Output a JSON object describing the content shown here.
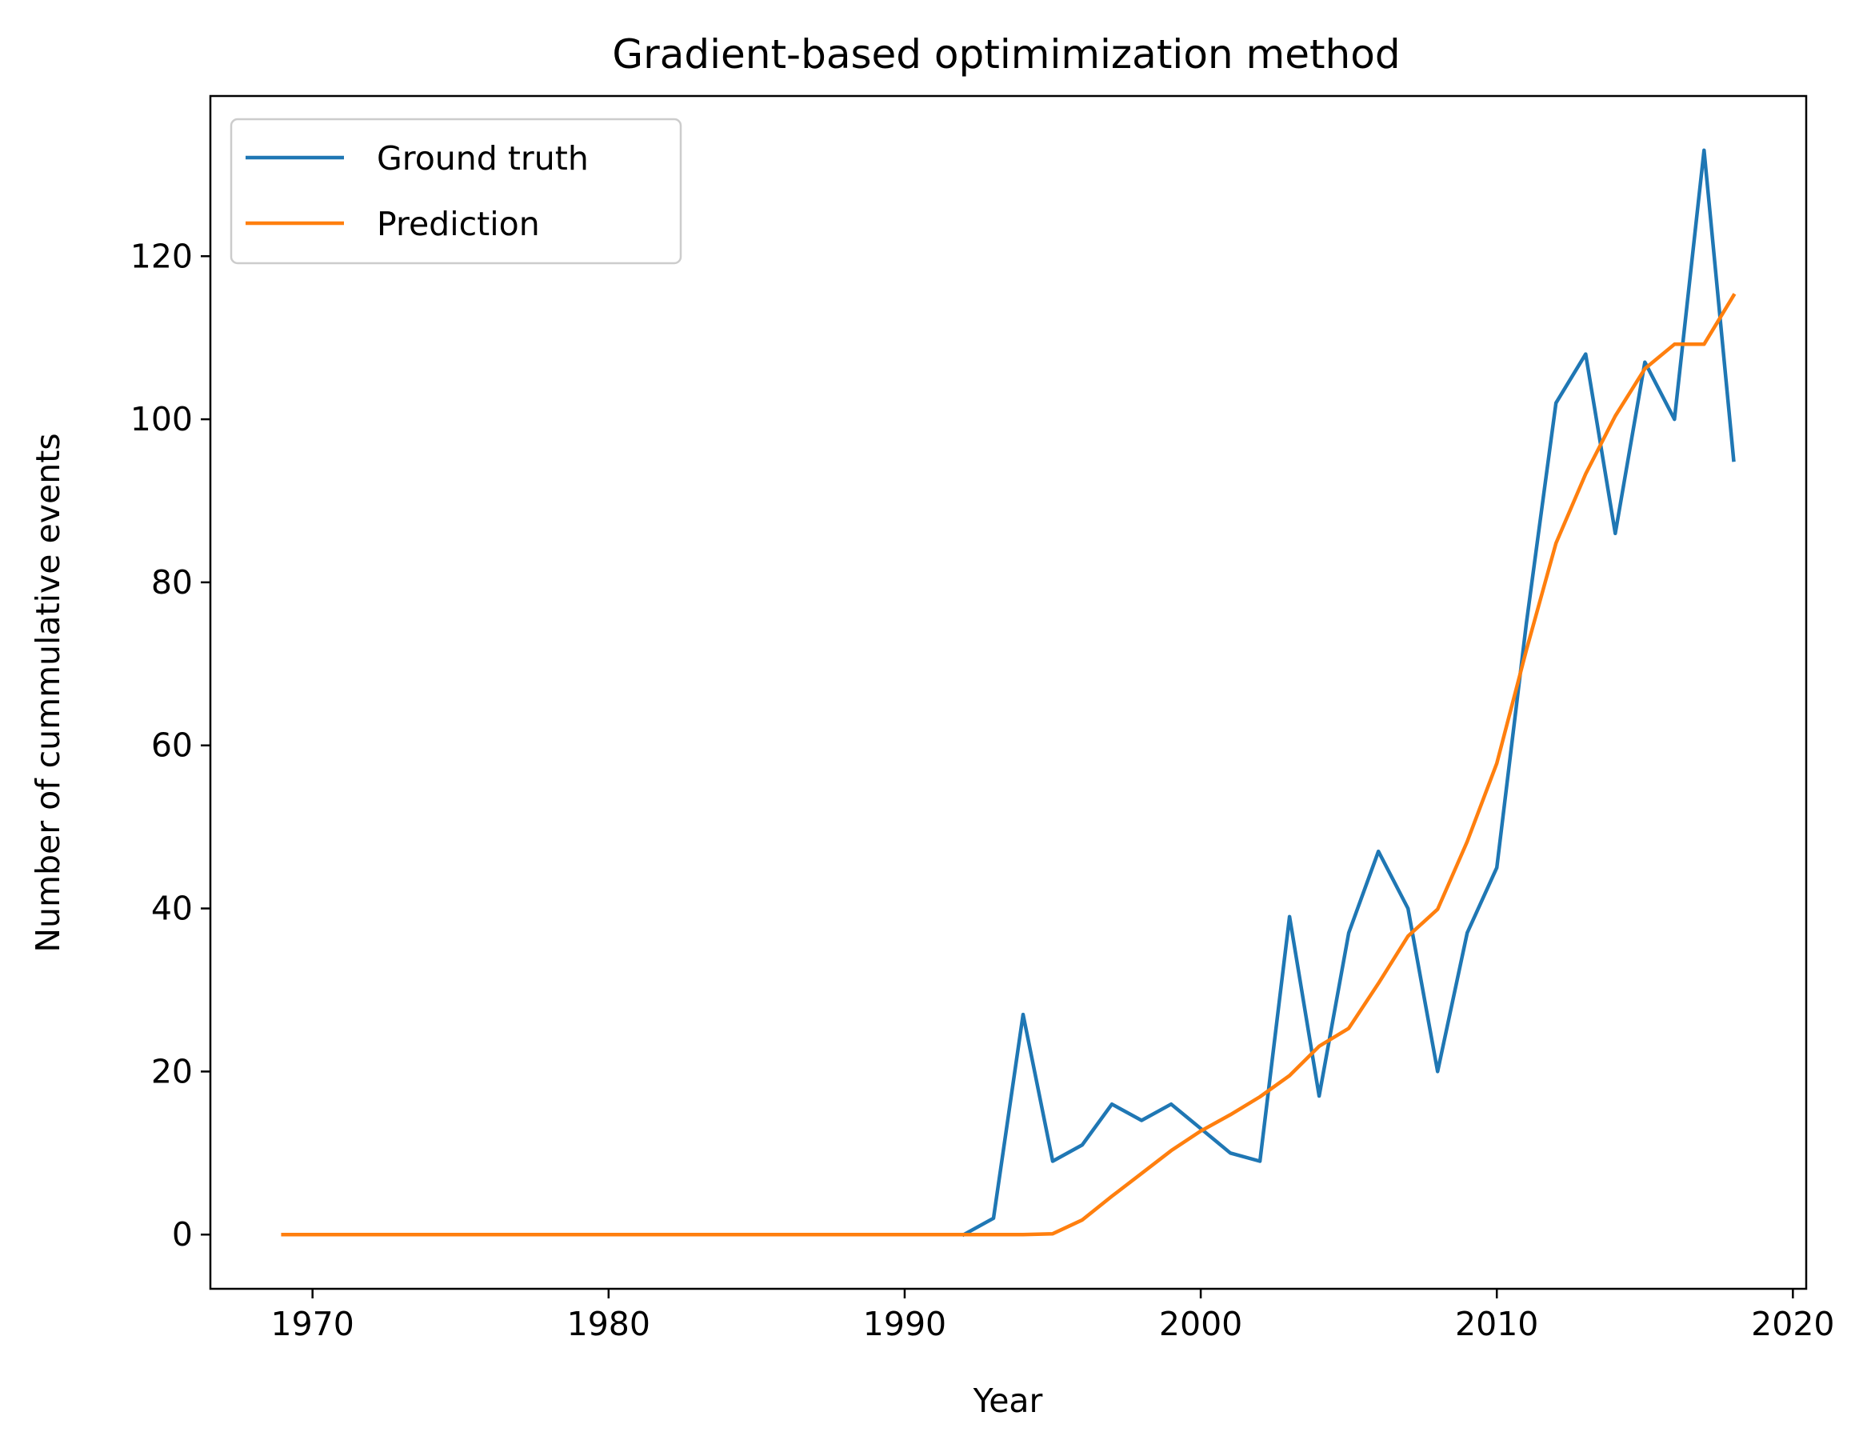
{
  "chart_data": {
    "type": "line",
    "title": "Gradient-based optimimization method",
    "xlabel": "Year",
    "ylabel": "Number of cummulative events",
    "xlim": [
      1966.55,
      2020.45
    ],
    "ylim": [
      -6.65,
      139.65
    ],
    "xticks": [
      1970,
      1980,
      1990,
      2000,
      2010,
      2020
    ],
    "yticks": [
      0,
      20,
      40,
      60,
      80,
      100,
      120
    ],
    "grid": false,
    "legend_position": "upper left",
    "series": [
      {
        "name": "Ground truth",
        "color": "#1f77b4",
        "x": [
          1992,
          1993,
          1994,
          1995,
          1996,
          1997,
          1998,
          1999,
          2000,
          2001,
          2002,
          2003,
          2004,
          2005,
          2006,
          2007,
          2008,
          2009,
          2010,
          2011,
          2012,
          2013,
          2014,
          2015,
          2016,
          2017,
          2018
        ],
        "y": [
          0,
          2,
          27,
          9,
          11,
          16,
          14,
          16,
          13,
          10,
          9,
          39,
          17,
          37,
          47,
          40,
          20,
          37,
          45,
          75,
          102,
          108,
          86,
          107,
          100,
          133,
          95
        ]
      },
      {
        "name": "Prediction",
        "color": "#ff7f0e",
        "x": [
          1969,
          1970,
          1971,
          1972,
          1973,
          1974,
          1975,
          1976,
          1977,
          1978,
          1979,
          1980,
          1981,
          1982,
          1983,
          1984,
          1985,
          1986,
          1987,
          1988,
          1989,
          1990,
          1991,
          1992,
          1993,
          1994,
          1995,
          1996,
          1997,
          1998,
          1999,
          2000,
          2001,
          2002,
          2003,
          2004,
          2005,
          2006,
          2007,
          2008,
          2009,
          2010,
          2011,
          2012,
          2013,
          2014,
          2015,
          2016,
          2017,
          2018
        ],
        "y": [
          0,
          0,
          0,
          0,
          0,
          0,
          0,
          0,
          0,
          0,
          0,
          0,
          0,
          0,
          0,
          0,
          0,
          0,
          0,
          0,
          0,
          0,
          0,
          0,
          0,
          0,
          0.1,
          1.8,
          4.7,
          7.5,
          10.3,
          12.7,
          14.7,
          16.9,
          19.5,
          23.1,
          25.3,
          30.8,
          36.6,
          39.9,
          48.2,
          57.8,
          71.7,
          84.8,
          93.3,
          100.4,
          106.2,
          109.2,
          109.2,
          115.2
        ]
      }
    ]
  }
}
